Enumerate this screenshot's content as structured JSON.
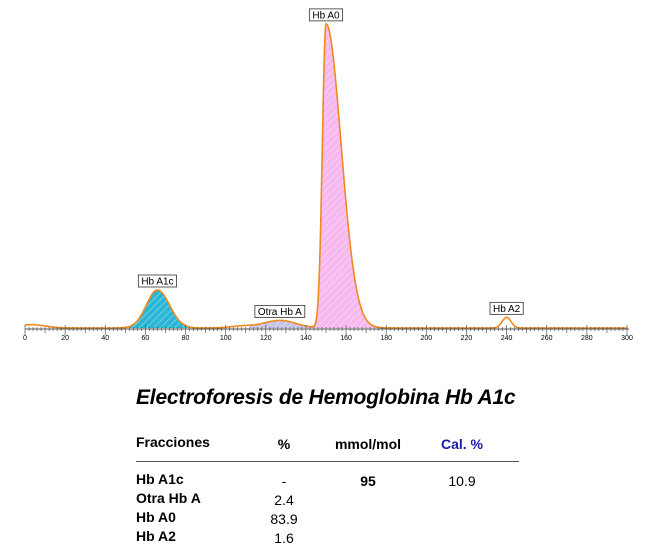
{
  "chart_data": {
    "type": "area",
    "xlim": [
      0,
      300
    ],
    "x_ticks": [
      0,
      20,
      40,
      60,
      80,
      100,
      120,
      140,
      160,
      180,
      200,
      220,
      240,
      260,
      280,
      300
    ],
    "peaks": [
      {
        "label": "Hb A1c",
        "x": 66,
        "height": 0.125,
        "fill": "#29b6d6"
      },
      {
        "label": "Otra Hb A",
        "x": 127,
        "height": 0.025,
        "fill": "#c7c3e6"
      },
      {
        "label": "Hb A0",
        "x": 150,
        "height": 1.0,
        "fill": "#f6b8ee"
      },
      {
        "label": "Hb A2",
        "x": 240,
        "height": 0.035,
        "fill": "#ffffff"
      }
    ],
    "line_color": "#f08a1c"
  },
  "title": "Electroforesis de Hemoglobina Hb A1c",
  "table": {
    "headers": {
      "name": "Fracciones",
      "pct": "%",
      "mmol": "mmol/mol",
      "cal": "Cal. %"
    },
    "rows": [
      {
        "name": "Hb A1c",
        "pct": "-",
        "mmol": "95",
        "cal": "10.9"
      },
      {
        "name": "Otra Hb A",
        "pct": "2.4",
        "mmol": "",
        "cal": ""
      },
      {
        "name": "Hb A0",
        "pct": "83.9",
        "mmol": "",
        "cal": ""
      },
      {
        "name": "Hb A2",
        "pct": "1.6",
        "mmol": "",
        "cal": ""
      }
    ]
  },
  "colors": {
    "cal_header": "#1a1aa6",
    "curve": "#f08a1c"
  }
}
